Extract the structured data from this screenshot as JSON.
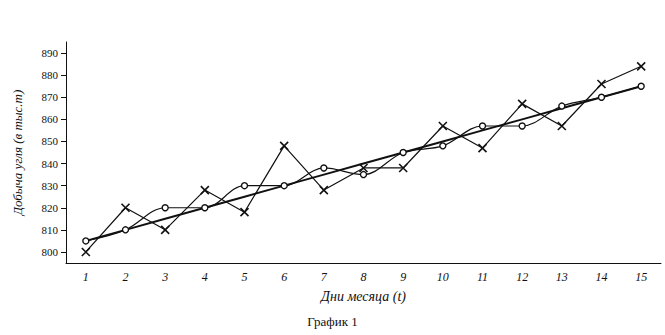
{
  "chart_data": {
    "type": "line",
    "title": "График 1",
    "x_label": "Дни месяца (t)",
    "y_label": "Добыча угля (в тыс.т)",
    "categories": [
      "1",
      "2",
      "3",
      "4",
      "5",
      "6",
      "7",
      "8",
      "9",
      "10",
      "11",
      "12",
      "13",
      "14",
      "15"
    ],
    "series": [
      {
        "color": "#111111",
        "marker": "x",
        "line_style": "solid",
        "values": [
          800,
          820,
          810,
          828,
          818,
          848,
          828,
          838,
          838,
          857,
          847,
          867,
          857,
          876,
          884
        ]
      },
      {
        "color": "#111111",
        "marker": "circle",
        "line_style": "smooth",
        "values": [
          805,
          810,
          820,
          820,
          830,
          830,
          838,
          835,
          845,
          848,
          857,
          857,
          866,
          870,
          875
        ]
      },
      {
        "color": "#111111",
        "marker": "none",
        "line_style": "solid",
        "values": [
          805,
          810,
          815,
          820,
          825,
          830,
          835,
          840,
          845,
          850,
          855,
          860,
          865,
          870,
          875
        ]
      }
    ],
    "ylim": [
      795,
      895
    ],
    "yticks": [
      800,
      810,
      820,
      830,
      840,
      850,
      860,
      870,
      880,
      890
    ],
    "grid": false
  }
}
